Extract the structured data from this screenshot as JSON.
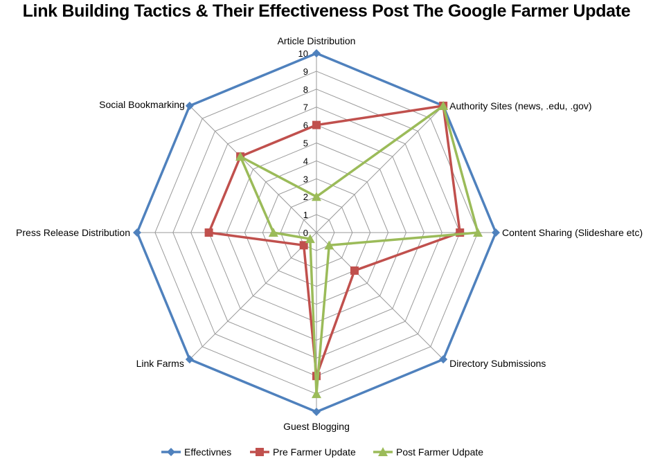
{
  "chart_data": {
    "type": "radar",
    "title": "Link Building Tactics & Their Effectiveness Post The Google Farmer Update",
    "categories": [
      "Article Distribution",
      "Authority Sites (news, .edu, .gov)",
      "Content Sharing (Slideshare etc)",
      "Directory Submissions",
      "Guest Blogging",
      "Link Farms",
      "Press Release Distribution",
      "Social Bookmarking"
    ],
    "rlim": [
      0,
      10
    ],
    "ticks": [
      "0",
      "1",
      "2",
      "3",
      "4",
      "5",
      "6",
      "7",
      "8",
      "9",
      "10"
    ],
    "grid": true,
    "legend_position": "bottom",
    "series": [
      {
        "name": "Effectivnes",
        "color": "#4F81BD",
        "marker": "diamond",
        "values": [
          10,
          10,
          10,
          10,
          10,
          10,
          10,
          10
        ]
      },
      {
        "name": "Pre Farmer Update",
        "color": "#C0504D",
        "marker": "square",
        "values": [
          6,
          10,
          8,
          3,
          8,
          1,
          6,
          6
        ]
      },
      {
        "name": "Post Farmer Udpate",
        "color": "#9BBB59",
        "marker": "triangle",
        "values": [
          2,
          10,
          9,
          1,
          9,
          0.5,
          2.4,
          6
        ]
      }
    ]
  }
}
